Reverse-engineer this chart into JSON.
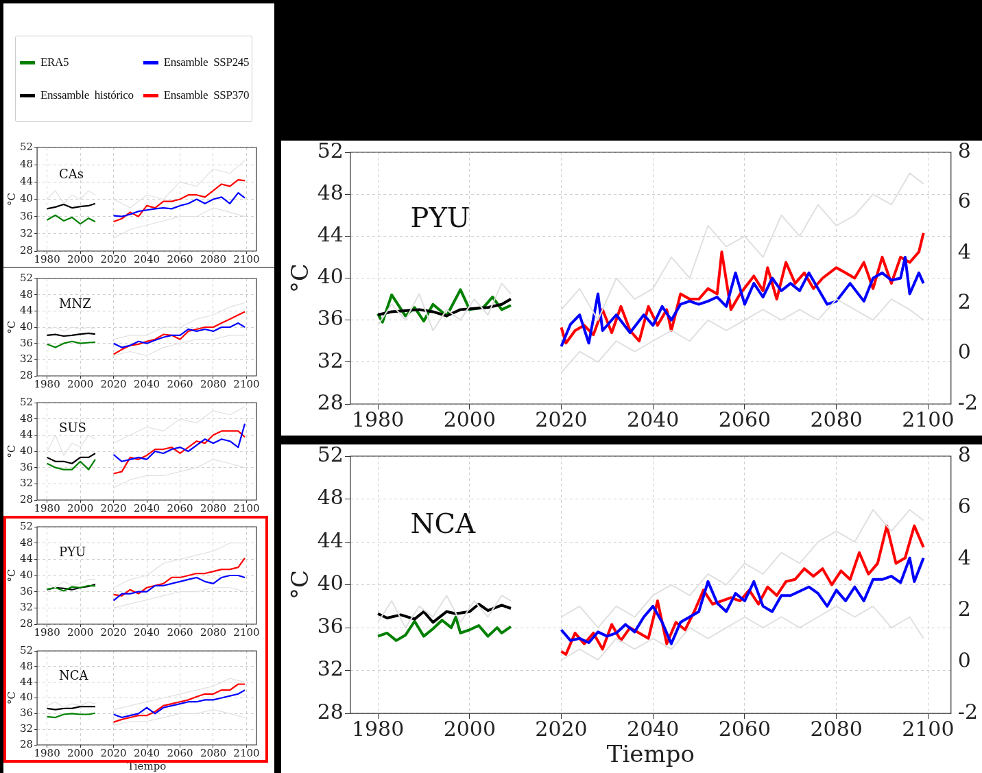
{
  "chart_data": [
    {
      "type": "line",
      "ylabel": "°C",
      "annotations": [
        "CAs"
      ],
      "xlim": [
        1974,
        2106
      ],
      "xticks": [
        1980,
        2000,
        2020,
        2040,
        2060,
        2080,
        2100
      ],
      "ylim": [
        28,
        52
      ],
      "yticks": [
        28,
        32,
        36,
        40,
        44,
        48,
        52
      ],
      "grid": true,
      "legend": "top left",
      "series": [
        {
          "color": "#e0e0e0",
          "x": [
            1980,
            1985,
            1990,
            1995,
            2000,
            2005,
            2009
          ],
          "values": [
            40,
            42,
            39,
            41,
            40,
            42,
            41
          ]
        },
        {
          "color": "#e0e0e0",
          "x": [
            2020,
            2030,
            2040,
            2050,
            2060,
            2070,
            2080,
            2090,
            2099
          ],
          "values": [
            40,
            38,
            41,
            40,
            44,
            43,
            47,
            46,
            49
          ]
        },
        {
          "color": "#e0e0e0",
          "x": [
            2020,
            2030,
            2040,
            2050,
            2060,
            2070,
            2080,
            2090,
            2099
          ],
          "values": [
            31,
            33,
            34,
            35,
            36,
            36,
            38,
            37,
            36
          ]
        },
        {
          "name": "ERA5",
          "color": "#008000",
          "x": [
            1980,
            1985,
            1990,
            1995,
            2000,
            2005,
            2009
          ],
          "values": [
            35.2,
            36.3,
            35.0,
            35.8,
            34.3,
            35.6,
            34.8
          ]
        },
        {
          "name": "Ensamble  SSP245",
          "color": "#0000ff",
          "x": [
            2020,
            2025,
            2030,
            2035,
            2040,
            2045,
            2050,
            2055,
            2060,
            2065,
            2070,
            2075,
            2080,
            2085,
            2090,
            2095,
            2099
          ],
          "values": [
            36.2,
            36.0,
            36.5,
            37.2,
            37.5,
            37.8,
            38.0,
            37.8,
            38.5,
            39.0,
            40.0,
            39.0,
            40.0,
            40.5,
            39.0,
            41.5,
            40.3
          ]
        },
        {
          "name": "Enssamble  histórico",
          "color": "#000000",
          "x": [
            1980,
            1985,
            1990,
            1995,
            2000,
            2005,
            2009
          ],
          "values": [
            37.8,
            38.2,
            38.8,
            38.0,
            38.3,
            38.5,
            39.0
          ]
        },
        {
          "name": "Ensamble  SSP370",
          "color": "#ff0000",
          "x": [
            2020,
            2025,
            2030,
            2035,
            2040,
            2045,
            2050,
            2055,
            2060,
            2065,
            2070,
            2075,
            2080,
            2085,
            2090,
            2095,
            2099
          ],
          "values": [
            34.8,
            35.5,
            37.0,
            36.0,
            38.5,
            38.0,
            39.5,
            39.5,
            40.0,
            41.0,
            41.0,
            40.5,
            42.0,
            43.5,
            43.0,
            44.5,
            44.3
          ]
        }
      ]
    },
    {
      "type": "line",
      "ylabel": "°C",
      "annotations": [
        "MNZ"
      ],
      "xlim": [
        1974,
        2106
      ],
      "xticks": [
        1980,
        2000,
        2020,
        2040,
        2060,
        2080,
        2100
      ],
      "ylim": [
        28,
        52
      ],
      "yticks": [
        28,
        32,
        36,
        40,
        44,
        48,
        52
      ],
      "grid": true,
      "series": [
        {
          "color": "#e0e0e0",
          "x": [
            1980,
            1985,
            1990,
            1995,
            2000,
            2005,
            2009
          ],
          "values": [
            39.5,
            40,
            39,
            40,
            39.5,
            40,
            39.5
          ]
        },
        {
          "color": "#e0e0e0",
          "x": [
            2020,
            2030,
            2040,
            2050,
            2060,
            2070,
            2080,
            2090,
            2099
          ],
          "values": [
            37,
            38,
            38,
            40,
            40,
            42,
            43,
            45,
            46
          ]
        },
        {
          "color": "#e0e0e0",
          "x": [
            2020,
            2030,
            2040,
            2050,
            2060,
            2070,
            2080,
            2090,
            2099
          ],
          "values": [
            33,
            34,
            33,
            35,
            36,
            37,
            37,
            38,
            38
          ]
        },
        {
          "color": "#008000",
          "x": [
            1980,
            1985,
            1990,
            1995,
            2000,
            2005,
            2009
          ],
          "values": [
            35.8,
            35.0,
            36.0,
            36.5,
            36.0,
            36.2,
            36.3
          ]
        },
        {
          "color": "#0000ff",
          "x": [
            2020,
            2025,
            2030,
            2035,
            2040,
            2045,
            2050,
            2055,
            2060,
            2065,
            2070,
            2075,
            2080,
            2085,
            2090,
            2095,
            2099
          ],
          "values": [
            36.0,
            35.0,
            35.5,
            36.5,
            36.0,
            36.8,
            37.5,
            38.0,
            38.0,
            39.5,
            39.0,
            39.5,
            39.0,
            40.0,
            40.0,
            41.0,
            40.0
          ]
        },
        {
          "color": "#000000",
          "x": [
            1980,
            1985,
            1990,
            1995,
            2000,
            2005,
            2009
          ],
          "values": [
            38.0,
            38.2,
            37.8,
            38.0,
            38.3,
            38.5,
            38.3
          ]
        },
        {
          "color": "#ff0000",
          "x": [
            2020,
            2025,
            2030,
            2035,
            2040,
            2045,
            2050,
            2055,
            2060,
            2065,
            2070,
            2075,
            2080,
            2085,
            2090,
            2095,
            2099
          ],
          "values": [
            33.3,
            34.5,
            35.5,
            35.8,
            36.5,
            37.0,
            38.2,
            38.0,
            37.0,
            39.0,
            39.5,
            40.0,
            40.0,
            41.0,
            42.0,
            43.0,
            43.8
          ]
        }
      ]
    },
    {
      "type": "line",
      "ylabel": "°C",
      "annotations": [
        "SUS"
      ],
      "xlim": [
        1974,
        2106
      ],
      "xticks": [
        1980,
        2000,
        2020,
        2040,
        2060,
        2080,
        2100
      ],
      "ylim": [
        28,
        52
      ],
      "yticks": [
        28,
        32,
        36,
        40,
        44,
        48,
        52
      ],
      "grid": true,
      "series": [
        {
          "color": "#e0e0e0",
          "x": [
            1980,
            1985,
            1990,
            1995,
            2000,
            2005,
            2009
          ],
          "values": [
            40,
            44,
            39,
            42,
            41,
            44,
            43
          ]
        },
        {
          "color": "#e0e0e0",
          "x": [
            2020,
            2030,
            2040,
            2050,
            2060,
            2070,
            2080,
            2090,
            2099
          ],
          "values": [
            42,
            44,
            46,
            45,
            48,
            47,
            50,
            49,
            51
          ]
        },
        {
          "color": "#e0e0e0",
          "x": [
            2020,
            2030,
            2040,
            2050,
            2060,
            2070,
            2080,
            2090,
            2099
          ],
          "values": [
            31,
            33,
            34,
            34,
            35,
            36,
            38,
            37,
            36
          ]
        },
        {
          "color": "#008000",
          "x": [
            1980,
            1985,
            1990,
            1995,
            2000,
            2005,
            2009
          ],
          "values": [
            37.0,
            36.0,
            35.5,
            35.5,
            37.5,
            35.5,
            38.0
          ]
        },
        {
          "color": "#0000ff",
          "x": [
            2020,
            2025,
            2030,
            2035,
            2040,
            2045,
            2050,
            2055,
            2060,
            2065,
            2070,
            2075,
            2080,
            2085,
            2090,
            2095,
            2099
          ],
          "values": [
            39.2,
            37.5,
            38.0,
            38.5,
            38.0,
            40.0,
            39.5,
            40.5,
            41.0,
            40.0,
            41.5,
            43.0,
            42.0,
            43.0,
            42.5,
            41.0,
            46.8
          ]
        },
        {
          "color": "#000000",
          "x": [
            1980,
            1985,
            1990,
            1995,
            2000,
            2005,
            2009
          ],
          "values": [
            38.5,
            37.5,
            37.5,
            37.0,
            38.5,
            38.5,
            39.5
          ]
        },
        {
          "color": "#ff0000",
          "x": [
            2020,
            2025,
            2030,
            2035,
            2040,
            2045,
            2050,
            2055,
            2060,
            2065,
            2070,
            2075,
            2080,
            2085,
            2090,
            2095,
            2099
          ],
          "values": [
            34.5,
            35.0,
            38.5,
            38.0,
            39.0,
            40.5,
            40.5,
            41.0,
            39.5,
            41.0,
            42.5,
            42.0,
            44.0,
            45.0,
            45.0,
            45.0,
            43.5
          ]
        }
      ]
    },
    {
      "type": "line",
      "ylabel": "°C",
      "annotations": [
        "PYU"
      ],
      "xlim": [
        1974,
        2106
      ],
      "xticks": [
        1980,
        2000,
        2020,
        2040,
        2060,
        2080,
        2100
      ],
      "ylim": [
        28,
        52
      ],
      "yticks": [
        28,
        32,
        36,
        40,
        44,
        48,
        52
      ],
      "grid": true,
      "series": [
        {
          "color": "#e0e0e0",
          "x": [
            1980,
            1985,
            1990,
            1995,
            2000,
            2005,
            2009
          ],
          "values": [
            38,
            37,
            38.5,
            37.5,
            38,
            39,
            39
          ]
        },
        {
          "color": "#e0e0e0",
          "x": [
            2020,
            2030,
            2040,
            2050,
            2060,
            2070,
            2080,
            2090,
            2099
          ],
          "values": [
            37,
            39,
            40,
            43,
            44,
            45,
            46,
            48,
            48
          ]
        },
        {
          "color": "#e0e0e0",
          "x": [
            2020,
            2030,
            2040,
            2050,
            2060,
            2070,
            2080,
            2090,
            2099
          ],
          "values": [
            32,
            33,
            34,
            35,
            36,
            36,
            37,
            37,
            36
          ]
        },
        {
          "color": "#008000",
          "x": [
            1980,
            1985,
            1990,
            1995,
            2000,
            2005,
            2009
          ],
          "values": [
            36.6,
            37.0,
            36.2,
            37.2,
            37.0,
            37.5,
            37.4
          ]
        },
        {
          "color": "#0000ff",
          "x": [
            2020,
            2025,
            2030,
            2035,
            2040,
            2045,
            2050,
            2055,
            2060,
            2065,
            2070,
            2075,
            2080,
            2085,
            2090,
            2095,
            2099
          ],
          "values": [
            33.8,
            35.5,
            35.5,
            36.0,
            36.0,
            37.5,
            37.5,
            38.0,
            38.5,
            39.0,
            39.5,
            38.5,
            38.0,
            39.5,
            40.0,
            40.0,
            39.5
          ]
        },
        {
          "color": "#000000",
          "x": [
            1980,
            1985,
            1990,
            1995,
            2000,
            2005,
            2009
          ],
          "values": [
            36.5,
            37.0,
            36.8,
            36.5,
            37.0,
            37.3,
            37.8
          ]
        },
        {
          "color": "#ff0000",
          "x": [
            2020,
            2025,
            2030,
            2035,
            2040,
            2045,
            2050,
            2055,
            2060,
            2065,
            2070,
            2075,
            2080,
            2085,
            2090,
            2095,
            2099
          ],
          "values": [
            35.3,
            35.0,
            36.5,
            35.5,
            37.0,
            37.5,
            38.0,
            39.5,
            39.5,
            40.0,
            40.5,
            40.5,
            41.0,
            41.5,
            41.5,
            42.0,
            44.3
          ]
        }
      ]
    },
    {
      "type": "line",
      "xlabel": "Tiempo",
      "ylabel": "°C",
      "annotations": [
        "NCA"
      ],
      "xlim": [
        1974,
        2106
      ],
      "xticks": [
        1980,
        2000,
        2020,
        2040,
        2060,
        2080,
        2100
      ],
      "ylim": [
        28,
        52
      ],
      "yticks": [
        28,
        32,
        36,
        40,
        44,
        48,
        52
      ],
      "grid": true,
      "series": [
        {
          "color": "#e0e0e0",
          "x": [
            1980,
            1985,
            1990,
            1995,
            2000,
            2005,
            2009
          ],
          "values": [
            38,
            39,
            37.5,
            38.5,
            38,
            39,
            38.5
          ]
        },
        {
          "color": "#e0e0e0",
          "x": [
            2020,
            2030,
            2040,
            2050,
            2060,
            2070,
            2080,
            2090,
            2099
          ],
          "values": [
            37,
            38,
            39,
            40,
            41,
            42,
            43,
            45,
            44
          ]
        },
        {
          "color": "#e0e0e0",
          "x": [
            2020,
            2030,
            2040,
            2050,
            2060,
            2070,
            2080,
            2090,
            2099
          ],
          "values": [
            33,
            34,
            34,
            35,
            36,
            36,
            37,
            36,
            35
          ]
        },
        {
          "color": "#008000",
          "x": [
            1980,
            1985,
            1990,
            1995,
            2000,
            2005,
            2009
          ],
          "values": [
            35.2,
            35.0,
            35.8,
            36.0,
            35.8,
            35.8,
            36.1
          ]
        },
        {
          "color": "#0000ff",
          "x": [
            2020,
            2025,
            2030,
            2035,
            2040,
            2045,
            2050,
            2055,
            2060,
            2065,
            2070,
            2075,
            2080,
            2085,
            2090,
            2095,
            2099
          ],
          "values": [
            35.8,
            35.0,
            35.5,
            36.0,
            37.5,
            36.0,
            37.5,
            38.0,
            38.5,
            39.0,
            39.0,
            39.5,
            39.5,
            40.0,
            40.5,
            41.0,
            42.0
          ]
        },
        {
          "color": "#000000",
          "x": [
            1980,
            1985,
            1990,
            1995,
            2000,
            2005,
            2009
          ],
          "values": [
            37.3,
            37.0,
            37.3,
            37.3,
            37.8,
            37.8,
            37.8
          ]
        },
        {
          "color": "#ff0000",
          "x": [
            2020,
            2025,
            2030,
            2035,
            2040,
            2045,
            2050,
            2055,
            2060,
            2065,
            2070,
            2075,
            2080,
            2085,
            2090,
            2095,
            2099
          ],
          "values": [
            33.8,
            34.5,
            35.0,
            35.5,
            35.5,
            36.5,
            38.0,
            38.5,
            39.0,
            39.5,
            40.3,
            41.0,
            41.0,
            42.0,
            42.0,
            43.5,
            43.5
          ]
        }
      ]
    },
    {
      "type": "line",
      "ylabel": "°C",
      "annotations": [
        "PYU"
      ],
      "xlim": [
        1974,
        2105
      ],
      "xticks": [
        1980,
        2000,
        2020,
        2040,
        2060,
        2080,
        2100
      ],
      "ylim": [
        28,
        52
      ],
      "yticks": [
        28,
        32,
        36,
        40,
        44,
        48,
        52
      ],
      "y2lim": [
        -2,
        8
      ],
      "y2ticks": [
        -2,
        0,
        2,
        4,
        6,
        8
      ],
      "grid": true,
      "series": [
        {
          "color": "#e0e0e0",
          "x": [
            1980,
            1983,
            1986,
            1989,
            1992,
            1995,
            1998,
            2001,
            2004,
            2007,
            2009
          ],
          "values": [
            35.5,
            37.5,
            36.0,
            38.5,
            35.0,
            37.0,
            36.0,
            38.0,
            36.5,
            39.5,
            38.5
          ]
        },
        {
          "color": "#e0e0e0",
          "x": [
            2020,
            2024,
            2028,
            2032,
            2036,
            2040,
            2044,
            2048,
            2052,
            2056,
            2060,
            2064,
            2068,
            2072,
            2076,
            2080,
            2084,
            2088,
            2092,
            2096,
            2099
          ],
          "values": [
            37,
            39,
            36,
            40,
            38,
            39,
            42,
            40,
            45,
            43,
            44,
            42,
            46,
            44,
            47,
            45,
            46,
            48,
            47,
            50,
            49
          ]
        },
        {
          "color": "#e0e0e0",
          "x": [
            2020,
            2024,
            2028,
            2032,
            2036,
            2040,
            2044,
            2048,
            2052,
            2056,
            2060,
            2064,
            2068,
            2072,
            2076,
            2080,
            2084,
            2088,
            2092,
            2096,
            2099
          ],
          "values": [
            31,
            33,
            32,
            34,
            33,
            34,
            35,
            34,
            36,
            35,
            36,
            37,
            36,
            37,
            36,
            38,
            37,
            36,
            38,
            37,
            36
          ]
        },
        {
          "color": "#000000",
          "x": [
            1980,
            1983,
            1986,
            1989,
            1992,
            1995,
            1998,
            2001,
            2004,
            2007,
            2009
          ],
          "values": [
            36.5,
            36.8,
            36.9,
            37.0,
            36.8,
            36.4,
            37.0,
            37.1,
            37.2,
            37.5,
            38.0
          ]
        },
        {
          "color": "#008000",
          "x": [
            1980,
            1981,
            1983,
            1986,
            1988,
            1990,
            1992,
            1995,
            1998,
            2000,
            2003,
            2005,
            2007,
            2009
          ],
          "values": [
            36.6,
            35.8,
            38.4,
            36.4,
            37.2,
            35.9,
            37.5,
            36.4,
            38.9,
            37.0,
            37.2,
            38.2,
            37.0,
            37.4
          ]
        },
        {
          "color": "#0000ff",
          "x": [
            2020,
            2022,
            2024,
            2026,
            2028,
            2029,
            2032,
            2035,
            2038,
            2040,
            2042,
            2044,
            2046,
            2048,
            2050,
            2052,
            2054,
            2056,
            2058,
            2060,
            2062,
            2064,
            2066,
            2068,
            2070,
            2072,
            2074,
            2076,
            2078,
            2080,
            2083,
            2086,
            2088,
            2090,
            2092,
            2094,
            2095,
            2096,
            2098,
            2099
          ],
          "values": [
            33.5,
            35.6,
            36.5,
            33.8,
            38.5,
            35.0,
            36.5,
            34.8,
            36.5,
            35.5,
            37.3,
            36.0,
            37.5,
            37.8,
            37.5,
            37.8,
            38.2,
            37.3,
            40.5,
            37.5,
            39.5,
            38.2,
            40.0,
            38.8,
            39.5,
            38.8,
            40.5,
            39.0,
            37.5,
            37.8,
            39.5,
            37.8,
            40.0,
            40.5,
            39.8,
            40.0,
            42.0,
            38.5,
            40.5,
            39.5
          ]
        },
        {
          "color": "#ff0000",
          "x": [
            2020,
            2021,
            2023,
            2025,
            2027,
            2029,
            2031,
            2033,
            2035,
            2037,
            2039,
            2041,
            2043,
            2044,
            2046,
            2048,
            2050,
            2052,
            2054,
            2055,
            2057,
            2059,
            2062,
            2064,
            2065,
            2067,
            2069,
            2071,
            2073,
            2075,
            2077,
            2080,
            2082,
            2084,
            2086,
            2088,
            2090,
            2092,
            2094,
            2096,
            2098,
            2099
          ],
          "values": [
            35.3,
            33.8,
            35.0,
            35.5,
            34.6,
            37.0,
            34.8,
            37.3,
            35.0,
            34.0,
            37.3,
            35.5,
            37.0,
            35.0,
            38.5,
            38.0,
            38.0,
            39.0,
            38.5,
            42.5,
            37.0,
            38.5,
            40.2,
            38.8,
            41.0,
            38.0,
            41.5,
            39.5,
            40.5,
            39.0,
            40.0,
            41.0,
            40.5,
            40.0,
            41.5,
            39.0,
            42.0,
            39.5,
            42.0,
            41.5,
            42.5,
            44.3
          ]
        }
      ]
    },
    {
      "type": "line",
      "xlabel": "Tiempo",
      "ylabel": "°C",
      "annotations": [
        "NCA"
      ],
      "xlim": [
        1974,
        2105
      ],
      "xticks": [
        1980,
        2000,
        2020,
        2040,
        2060,
        2080,
        2100
      ],
      "ylim": [
        28,
        52
      ],
      "yticks": [
        28,
        32,
        36,
        40,
        44,
        48,
        52
      ],
      "y2lim": [
        -2,
        8
      ],
      "y2ticks": [
        -2,
        0,
        2,
        4,
        6,
        8
      ],
      "grid": true,
      "series": [
        {
          "color": "#e0e0e0",
          "x": [
            1980,
            1983,
            1986,
            1989,
            1992,
            1995,
            1998,
            2001,
            2004,
            2007,
            2009
          ],
          "values": [
            36.5,
            38.5,
            36.0,
            38.0,
            37.0,
            39.0,
            36.5,
            38.5,
            37.0,
            39.0,
            38.5
          ]
        },
        {
          "color": "#e0e0e0",
          "x": [
            2020,
            2024,
            2028,
            2032,
            2036,
            2040,
            2044,
            2048,
            2052,
            2056,
            2060,
            2064,
            2068,
            2072,
            2076,
            2080,
            2084,
            2088,
            2092,
            2096,
            2099
          ],
          "values": [
            37,
            38,
            36,
            38,
            37,
            39,
            40,
            39,
            41,
            40,
            42,
            41,
            43,
            42,
            44,
            45,
            44,
            47,
            45,
            47,
            46
          ]
        },
        {
          "color": "#e0e0e0",
          "x": [
            2020,
            2024,
            2028,
            2032,
            2036,
            2040,
            2044,
            2048,
            2052,
            2056,
            2060,
            2064,
            2068,
            2072,
            2076,
            2080,
            2084,
            2088,
            2092,
            2096,
            2099
          ],
          "values": [
            33,
            34,
            33,
            35,
            34,
            35,
            34,
            36,
            35,
            36,
            37,
            36,
            37,
            36,
            37,
            38,
            37,
            38,
            36,
            37,
            35
          ]
        },
        {
          "color": "#000000",
          "x": [
            1980,
            1982,
            1985,
            1988,
            1990,
            1992,
            1995,
            1997,
            2000,
            2002,
            2004,
            2007,
            2009
          ],
          "values": [
            37.3,
            36.9,
            37.2,
            36.8,
            37.5,
            36.5,
            37.5,
            37.3,
            37.5,
            38.2,
            37.6,
            38.1,
            37.8
          ]
        },
        {
          "color": "#008000",
          "x": [
            1980,
            1982,
            1984,
            1986,
            1988,
            1990,
            1992,
            1994,
            1996,
            1997,
            1998,
            2000,
            2002,
            2004,
            2006,
            2007,
            2009
          ],
          "values": [
            35.2,
            35.5,
            34.8,
            35.3,
            36.6,
            35.2,
            35.9,
            36.7,
            36.0,
            37.0,
            35.5,
            35.8,
            36.2,
            35.2,
            36.0,
            35.5,
            36.1
          ]
        },
        {
          "color": "#0000ff",
          "x": [
            2020,
            2022,
            2024,
            2026,
            2028,
            2030,
            2032,
            2034,
            2036,
            2038,
            2040,
            2042,
            2044,
            2046,
            2048,
            2050,
            2052,
            2054,
            2056,
            2058,
            2060,
            2062,
            2064,
            2066,
            2068,
            2070,
            2074,
            2076,
            2078,
            2080,
            2082,
            2084,
            2086,
            2088,
            2090,
            2092,
            2094,
            2096,
            2097,
            2099
          ],
          "values": [
            35.8,
            34.8,
            35.0,
            34.6,
            35.6,
            35.2,
            35.5,
            36.3,
            35.6,
            37.0,
            38.0,
            36.5,
            34.5,
            36.5,
            37.0,
            37.5,
            40.3,
            38.3,
            37.5,
            39.2,
            38.5,
            40.3,
            38.0,
            37.5,
            39.0,
            39.0,
            39.8,
            39.2,
            38.0,
            39.5,
            38.5,
            39.8,
            38.5,
            40.5,
            40.5,
            40.8,
            40.2,
            42.5,
            40.3,
            42.5
          ]
        },
        {
          "color": "#ff0000",
          "x": [
            2020,
            2021,
            2023,
            2025,
            2027,
            2029,
            2031,
            2033,
            2035,
            2037,
            2039,
            2041,
            2043,
            2045,
            2047,
            2049,
            2051,
            2053,
            2055,
            2057,
            2059,
            2061,
            2063,
            2065,
            2067,
            2069,
            2071,
            2073,
            2075,
            2077,
            2079,
            2081,
            2083,
            2085,
            2087,
            2089,
            2091,
            2093,
            2095,
            2097,
            2099
          ],
          "values": [
            33.8,
            33.5,
            35.5,
            34.5,
            35.5,
            34.0,
            36.3,
            34.8,
            36.0,
            35.5,
            35.0,
            38.5,
            34.5,
            36.5,
            35.8,
            37.5,
            39.5,
            38.2,
            38.5,
            38.8,
            38.5,
            39.5,
            38.2,
            39.8,
            39.0,
            40.3,
            40.5,
            41.5,
            40.8,
            41.5,
            40.0,
            41.3,
            40.5,
            43.0,
            41.0,
            42.0,
            45.5,
            42.0,
            42.5,
            45.5,
            43.5
          ]
        }
      ]
    }
  ]
}
